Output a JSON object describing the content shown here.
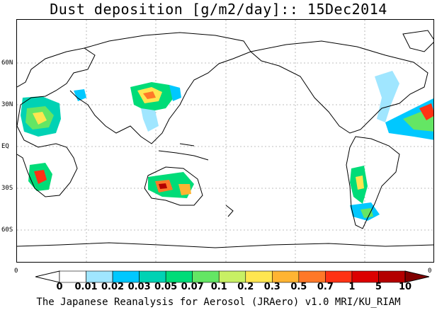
{
  "title": "Dust deposition [g/m2/day]:: 15Dec2014",
  "latitude_labels": [
    "60N",
    "30N",
    "EQ",
    "30S",
    "60S"
  ],
  "colorbar": {
    "left_end_label": "0",
    "right_end_label": "0",
    "ticks": [
      "0",
      "0.01",
      "0.02",
      "0.03",
      "0.05",
      "0.07",
      "0.1",
      "0.2",
      "0.3",
      "0.5",
      "0.7",
      "1",
      "5",
      "10"
    ],
    "colors": [
      "#ffffff",
      "#ffffff",
      "#a0e6ff",
      "#00c8ff",
      "#00d2b4",
      "#00dc78",
      "#64e664",
      "#c8f064",
      "#ffe650",
      "#ffb432",
      "#ff7828",
      "#ff3214",
      "#dc0000",
      "#b40000",
      "#800000"
    ]
  },
  "footer": "The Japanese Reanalysis for Aerosol (JRAero) v1.0 MRI/KU_RIAM"
}
